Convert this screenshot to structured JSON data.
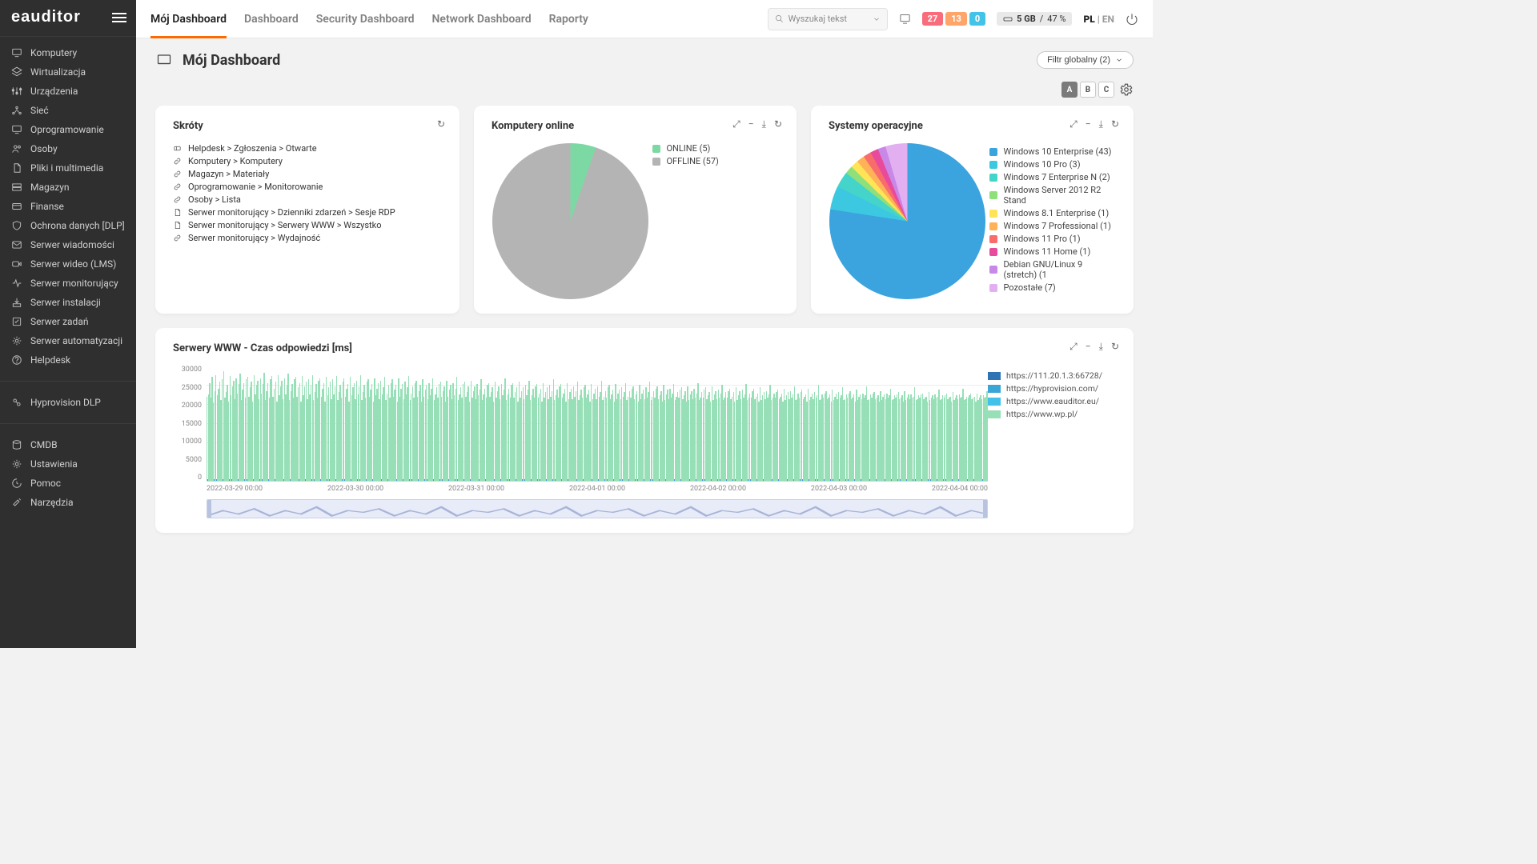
{
  "brand": "eauditor",
  "sidebar": {
    "items": [
      {
        "label": "Komputery",
        "icon": "monitor"
      },
      {
        "label": "Wirtualizacja",
        "icon": "layers"
      },
      {
        "label": "Urządzenia",
        "icon": "sliders"
      },
      {
        "label": "Sieć",
        "icon": "network"
      },
      {
        "label": "Oprogramowanie",
        "icon": "monitor"
      },
      {
        "label": "Osoby",
        "icon": "users"
      },
      {
        "label": "Pliki i multimedia",
        "icon": "file"
      },
      {
        "label": "Magazyn",
        "icon": "storage"
      },
      {
        "label": "Finanse",
        "icon": "card"
      },
      {
        "label": "Ochrona danych [DLP]",
        "icon": "shield"
      },
      {
        "label": "Serwer wiadomości",
        "icon": "mail"
      },
      {
        "label": "Serwer wideo (LMS)",
        "icon": "video"
      },
      {
        "label": "Serwer monitorujący",
        "icon": "activity"
      },
      {
        "label": "Serwer instalacji",
        "icon": "install"
      },
      {
        "label": "Serwer zadań",
        "icon": "tasks"
      },
      {
        "label": "Serwer automatyzacji",
        "icon": "auto"
      },
      {
        "label": "Helpdesk",
        "icon": "help"
      }
    ],
    "items2": [
      {
        "label": "Hyprovision DLP",
        "icon": "hypro"
      }
    ],
    "items3": [
      {
        "label": "CMDB",
        "icon": "db"
      },
      {
        "label": "Ustawienia",
        "icon": "gear"
      },
      {
        "label": "Pomoc",
        "icon": "help2"
      },
      {
        "label": "Narzędzia",
        "icon": "tools"
      }
    ]
  },
  "top": {
    "tabs": [
      "Mój Dashboard",
      "Dashboard",
      "Security Dashboard",
      "Network Dashboard",
      "Raporty"
    ],
    "active_tab": 0,
    "search_placeholder": "Wyszukaj tekst",
    "pills": [
      {
        "value": "27",
        "color": "#f86c7c"
      },
      {
        "value": "13",
        "color": "#ffa569"
      },
      {
        "value": "0",
        "color": "#44c3e8"
      }
    ],
    "disk": {
      "size": "5 GB",
      "pct": "47 %"
    },
    "lang_active": "PL",
    "lang_other": "EN"
  },
  "page": {
    "title": "Mój Dashboard",
    "filter_label": "Filtr globalny (2)",
    "tool_letters": [
      "A",
      "B",
      "C"
    ],
    "tool_active": 0
  },
  "cards": {
    "shortcuts": {
      "title": "Skróty",
      "items": [
        {
          "icon": "ticket",
          "label": "Helpdesk > Zgłoszenia > Otwarte"
        },
        {
          "icon": "link",
          "label": "Komputery > Komputery"
        },
        {
          "icon": "link",
          "label": "Magazyn > Materiały"
        },
        {
          "icon": "link",
          "label": "Oprogramowanie > Monitorowanie"
        },
        {
          "icon": "link",
          "label": "Osoby > Lista"
        },
        {
          "icon": "file",
          "label": "Serwer monitorujący > Dzienniki zdarzeń > Sesje RDP"
        },
        {
          "icon": "file",
          "label": "Serwer monitorujący > Serwery WWW > Wszystko"
        },
        {
          "icon": "link",
          "label": "Serwer monitorujący > Wydajność"
        }
      ]
    },
    "online": {
      "title": "Komputery online",
      "type": "pie",
      "slices": [
        {
          "label": "ONLINE (5)",
          "value": 5,
          "color": "#7dd9a3"
        },
        {
          "label": "OFFLINE (57)",
          "value": 57,
          "color": "#b4b4b4"
        }
      ],
      "diameter": 195
    },
    "os": {
      "title": "Systemy operacyjne",
      "type": "pie",
      "diameter": 195,
      "slices": [
        {
          "label": "Windows 10 Enterprise (43)",
          "value": 43,
          "color": "#3ba3dd"
        },
        {
          "label": "Windows 10 Pro (3)",
          "value": 3,
          "color": "#3cc8e0"
        },
        {
          "label": "Windows 7 Enterprise N (2)",
          "value": 2,
          "color": "#44d4ca"
        },
        {
          "label": "Windows Server 2012 R2 Stand",
          "value": 1,
          "color": "#8fe07a"
        },
        {
          "label": "Windows 8.1 Enterprise (1)",
          "value": 1,
          "color": "#ffe457"
        },
        {
          "label": "Windows 7 Professional (1)",
          "value": 1,
          "color": "#ffb257"
        },
        {
          "label": "Windows 11 Pro (1)",
          "value": 1,
          "color": "#f86c6c"
        },
        {
          "label": "Windows 11 Home (1)",
          "value": 1,
          "color": "#e84a9c"
        },
        {
          "label": "Debian GNU/Linux 9 (stretch) (1",
          "value": 1,
          "color": "#c888e8"
        },
        {
          "label": "Pozostałe (7)",
          "value": 7,
          "color": "#e2b0f0"
        }
      ]
    },
    "www": {
      "title": "Serwery WWW - Czas odpowiedzi [ms]",
      "type": "bar-timeseries",
      "ylim": [
        0,
        30000
      ],
      "ytick_step": 5000,
      "yticks": [
        "30000",
        "25000",
        "20000",
        "15000",
        "10000",
        "5000",
        "0"
      ],
      "xticks": [
        "2022-03-29 00:00",
        "2022-03-30 00:00",
        "2022-03-31 00:00",
        "2022-04-01 00:00",
        "2022-04-02 00:00",
        "2022-04-03 00:00",
        "2022-04-04 00:00"
      ],
      "bar_color": "#97dfb6",
      "baseline_color": "#2ea0d6",
      "legend": [
        {
          "label": "https://111.20.1.3:66728/",
          "color": "#2e74b5"
        },
        {
          "label": "https://hyprovision.com/",
          "color": "#3aa6d6"
        },
        {
          "label": "https://www.eauditor.eu/",
          "color": "#42c2e9"
        },
        {
          "label": "https://www.wp.pl/",
          "color": "#97dfb6"
        }
      ],
      "bar_heights_pct": [
        73,
        75,
        85,
        72,
        90,
        68,
        78,
        92,
        74,
        80,
        86,
        70,
        88,
        95,
        72,
        77,
        83,
        69,
        91,
        74,
        82,
        87,
        71,
        89,
        76,
        84,
        93,
        70,
        79,
        85,
        72,
        88,
        90,
        73,
        81,
        86,
        69,
        92,
        75,
        83,
        87,
        71,
        89,
        76,
        84,
        94,
        70,
        78,
        85,
        72,
        88,
        91,
        73,
        80,
        86,
        69,
        92,
        74,
        82,
        87,
        71,
        89,
        75,
        83,
        93,
        70,
        78,
        84,
        72,
        88,
        90,
        73,
        81,
        85,
        69,
        91,
        74,
        82,
        86,
        71,
        88,
        75,
        83,
        92,
        70,
        77,
        84,
        72,
        87,
        89,
        73,
        80,
        85,
        69,
        90,
        74,
        81,
        86,
        71,
        88,
        75,
        82,
        91,
        70,
        77,
        83,
        72,
        86,
        89,
        73,
        80,
        84,
        69,
        90,
        74,
        81,
        85,
        71,
        87,
        75,
        82,
        92,
        70,
        77,
        83,
        72,
        86,
        88,
        73,
        79,
        84,
        69,
        89,
        74,
        80,
        85,
        71,
        87,
        75,
        81,
        90,
        70,
        76,
        83,
        72,
        85,
        88,
        73,
        79,
        83,
        69,
        89,
        73,
        80,
        84,
        71,
        86,
        75,
        81,
        91,
        70,
        76,
        82,
        72,
        85,
        87,
        73,
        78,
        83,
        69,
        88,
        73,
        79,
        83,
        71,
        85,
        74,
        80,
        89,
        70,
        75,
        81,
        72,
        84,
        86,
        73,
        78,
        82,
        69,
        87,
        73,
        79,
        83,
        71,
        85,
        74,
        80,
        90,
        70,
        75,
        81,
        72,
        84,
        86,
        73,
        77,
        82,
        69,
        87,
        72,
        78,
        82,
        71,
        84,
        74,
        79,
        88,
        70,
        75,
        80,
        72,
        83,
        85,
        73,
        77,
        81,
        69,
        86,
        72,
        78,
        82,
        71,
        84,
        74,
        79,
        89,
        70,
        75,
        80,
        72,
        83,
        85,
        72,
        77,
        81,
        69,
        86,
        72,
        78,
        81,
        71,
        83,
        74,
        79,
        87,
        70,
        74,
        80,
        72,
        82,
        84,
        72,
        76,
        80,
        69,
        85,
        72,
        77,
        81,
        71,
        83,
        73,
        78,
        88,
        70,
        74,
        79,
        72,
        82,
        84,
        72,
        76,
        80,
        69,
        85,
        71,
        77,
        80,
        71,
        82,
        73,
        78,
        86,
        70,
        74,
        79,
        72,
        81,
        83,
        72,
        75,
        79,
        69,
        84,
        71,
        76,
        80,
        71,
        82,
        73,
        77,
        87,
        70,
        73,
        78,
        72,
        81,
        83,
        71,
        75,
        79,
        69,
        84,
        71,
        76,
        79,
        71,
        81,
        73,
        77,
        85,
        70,
        73,
        78,
        72,
        80,
        82,
        71,
        75,
        78,
        69,
        83,
        71,
        76,
        79,
        71,
        81,
        72,
        77,
        86,
        70,
        73,
        78,
        72,
        80,
        82,
        71,
        74,
        78,
        69,
        83,
        70,
        75,
        79,
        71,
        80,
        72,
        76,
        84,
        70,
        73,
        77,
        72,
        79,
        81,
        71,
        74,
        78,
        69,
        82,
        70,
        75,
        78,
        71,
        80,
        72,
        76,
        85,
        70,
        72,
        77,
        72,
        79,
        81,
        71,
        74,
        77,
        69,
        82,
        70,
        75,
        78,
        71,
        79,
        72,
        76,
        83,
        70,
        72,
        77,
        72,
        78,
        80,
        71,
        73,
        77,
        69,
        81,
        70,
        74,
        78,
        71,
        79,
        72,
        75,
        84,
        70,
        72,
        76,
        72,
        78,
        80,
        71,
        73,
        76,
        69,
        81,
        70,
        74,
        77,
        71,
        78,
        72,
        75,
        83,
        70,
        72,
        76,
        72,
        77,
        79,
        71,
        73,
        76,
        69,
        80,
        70,
        74,
        77,
        71,
        78,
        72,
        75,
        82,
        70,
        71,
        76,
        72,
        77,
        79,
        71,
        73,
        75,
        69,
        80,
        70,
        73,
        76,
        71,
        77,
        72,
        74,
        83,
        70,
        71,
        75,
        72,
        76,
        78,
        71,
        72,
        75,
        69,
        79,
        70,
        73,
        76,
        71,
        77,
        72,
        74,
        81,
        70,
        71,
        75,
        72,
        76,
        78,
        71,
        72,
        75,
        69,
        79,
        70,
        73,
        75,
        71,
        76,
        72,
        74,
        82,
        70,
        71,
        75,
        72,
        76,
        77,
        71,
        72,
        74,
        69,
        78,
        70,
        73,
        75,
        71,
        76,
        72,
        74,
        80,
        70,
        71,
        74,
        72,
        75,
        77,
        71,
        72,
        74,
        69,
        78,
        70,
        72,
        75,
        71,
        75,
        72,
        73,
        81,
        70,
        71,
        74,
        72,
        75,
        76,
        71,
        72,
        73,
        69,
        77,
        70,
        72,
        74,
        71,
        75,
        72,
        73,
        79,
        70,
        71,
        74,
        72,
        74,
        76,
        71,
        72,
        73,
        69,
        77,
        70,
        72,
        74,
        71,
        75,
        72,
        73,
        80,
        70,
        71,
        73,
        72,
        74,
        76,
        71,
        72,
        73,
        69,
        76,
        70,
        72,
        74,
        71,
        74,
        72,
        73,
        78
      ]
    }
  }
}
